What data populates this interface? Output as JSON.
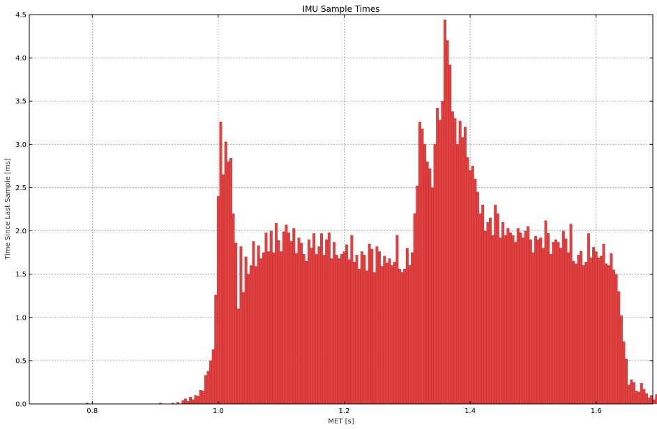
{
  "chart_data": {
    "type": "bar",
    "title": "IMU Sample Times",
    "xlabel": "MET [s]",
    "ylabel": "Time Since Last Sample [ms]",
    "xlim": [
      0.7,
      1.69
    ],
    "ylim": [
      0,
      4.5
    ],
    "xticks": [
      "0.8",
      "1.0",
      "1.2",
      "1.4",
      "1.6"
    ],
    "yticks": [
      "0.0",
      "0.5",
      "1.0",
      "1.5",
      "2.0",
      "2.5",
      "3.0",
      "3.5",
      "4.0",
      "4.5"
    ],
    "grid": true,
    "bar_color": "#e04040",
    "bin_width": 0.004,
    "bin_start": 0.79,
    "values": [
      0.01,
      0,
      0,
      0,
      0,
      0,
      0,
      0,
      0,
      0,
      0,
      0,
      0,
      0,
      0,
      0,
      0,
      0,
      0,
      0,
      0,
      0,
      0,
      0,
      0,
      0,
      0,
      0,
      0,
      0.01,
      0,
      0,
      0,
      0,
      0.01,
      0,
      0.02,
      0,
      0.04,
      0.06,
      0.03,
      0.08,
      0.05,
      0.1,
      0.09,
      0.16,
      0.15,
      0.33,
      0.38,
      0.5,
      0.63,
      1.26,
      2.4,
      3.26,
      2.65,
      3.03,
      2.8,
      2.84,
      2.2,
      1.86,
      1.1,
      1.82,
      1.29,
      1.7,
      1.5,
      1.6,
      1.88,
      1.59,
      1.83,
      1.68,
      1.75,
      1.98,
      1.76,
      2.0,
      1.75,
      2.09,
      1.89,
      1.76,
      1.99,
      2.07,
      1.98,
      1.88,
      2.03,
      1.74,
      1.92,
      1.86,
      1.73,
      1.65,
      1.9,
      1.8,
      1.97,
      1.73,
      1.82,
      1.97,
      1.72,
      1.9,
      1.98,
      1.68,
      1.87,
      1.72,
      1.68,
      1.73,
      1.76,
      1.84,
      1.67,
      1.95,
      1.64,
      1.72,
      1.56,
      1.76,
      1.72,
      1.54,
      1.85,
      1.79,
      1.52,
      1.82,
      1.76,
      1.59,
      1.71,
      1.63,
      1.68,
      1.6,
      1.64,
      1.95,
      1.56,
      1.52,
      1.56,
      1.8,
      1.6,
      1.75,
      2.2,
      2.52,
      3.26,
      3.18,
      3.0,
      2.8,
      2.72,
      2.5,
      3.0,
      3.42,
      3.28,
      3.5,
      4.44,
      4.2,
      3.92,
      3.38,
      3.3,
      3.0,
      3.27,
      3.08,
      3.2,
      2.85,
      2.7,
      2.75,
      2.6,
      2.45,
      2.2,
      2.3,
      2.0,
      2.1,
      2.15,
      1.95,
      2.3,
      2.2,
      1.92,
      2.1,
      1.95,
      2.03,
      1.98,
      1.95,
      1.87,
      2.03,
      1.98,
      1.92,
      2.0,
      2.05,
      1.9,
      1.75,
      1.94,
      1.9,
      1.92,
      1.8,
      2.12,
      1.97,
      1.73,
      1.87,
      1.9,
      1.87,
      1.8,
      2.0,
      1.91,
      1.75,
      2.08,
      1.65,
      1.62,
      1.72,
      1.77,
      1.6,
      1.64,
      1.97,
      1.69,
      1.81,
      1.76,
      1.69,
      1.71,
      1.85,
      1.62,
      1.6,
      1.74,
      1.55,
      1.5,
      1.3,
      1.02,
      0.72,
      0.52,
      0.22,
      0.28,
      0.25,
      0.15,
      0.14,
      0.24,
      0.17,
      0.12,
      0.07,
      0.1,
      0.05,
      0.11,
      0.03,
      0.08,
      0.06,
      0.06,
      0.03,
      0.04,
      0.03,
      0.02,
      0.02,
      0.03,
      0.01,
      0.02,
      0.03,
      0.02,
      0.01,
      0.02,
      0.01,
      0.02,
      0.01,
      0.01,
      0.02,
      0.01,
      0.01,
      0,
      0.01,
      0.01,
      0.02,
      0.01,
      0.02,
      0.01,
      0.01,
      0.01,
      0,
      0.01,
      0.01,
      0.01,
      0,
      0.02,
      0,
      0.01,
      0,
      0.01,
      0,
      0.01,
      0,
      0.01
    ]
  }
}
